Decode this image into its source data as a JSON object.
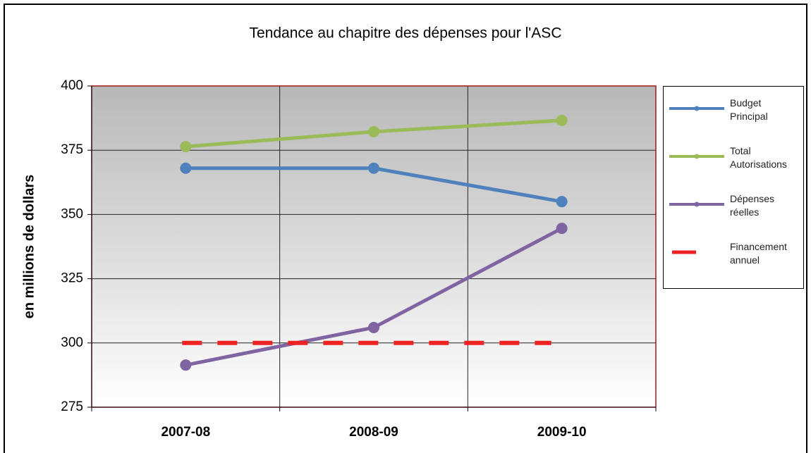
{
  "chart_data": {
    "type": "line",
    "title": "Tendance au chapitre des dépenses pour l'ASC",
    "y_label": "en millions de dollars",
    "categories": [
      "2007-08",
      "2008-09",
      "2009-10"
    ],
    "series": [
      {
        "name": "Budget Principal",
        "color": "#4f81bd",
        "values": [
          368,
          368,
          355
        ]
      },
      {
        "name": "Total Autorisations",
        "color": "#9bbb59",
        "values": [
          376.4,
          382.2,
          386.6
        ]
      },
      {
        "name": "Dépenses réelles",
        "color": "#8064a2",
        "values": [
          291.4,
          306,
          344.6
        ]
      },
      {
        "name": "Financement annuel",
        "color": "#ee2222",
        "dashed": true,
        "values": [
          300,
          300,
          300
        ]
      }
    ],
    "ylim": [
      275,
      400
    ],
    "yticks": [
      275,
      300,
      325,
      350,
      375,
      400
    ],
    "grid": true,
    "legend": "right"
  }
}
